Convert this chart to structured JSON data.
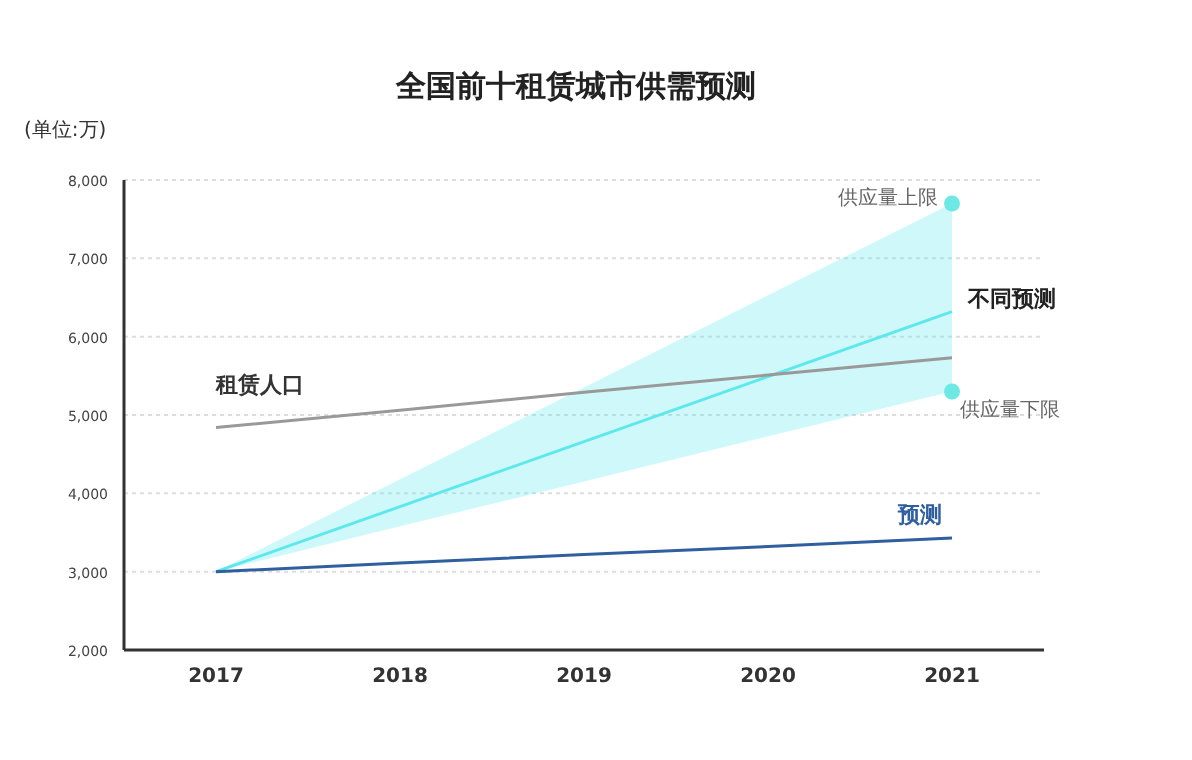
{
  "chart_data": {
    "type": "line",
    "title": "全国前十租赁城市供需预测",
    "ylabel": "(单位:万)",
    "categories": [
      "2017",
      "2018",
      "2019",
      "2020",
      "2021"
    ],
    "series": [
      {
        "name": "不同预测",
        "color": "#5ee8ec",
        "values": [
          3000,
          3830,
          4660,
          5490,
          6320
        ],
        "lower": [
          3000,
          3580,
          4150,
          4730,
          5300
        ],
        "upper": [
          3000,
          4180,
          5350,
          6530,
          7700
        ]
      },
      {
        "name": "租赁人口",
        "color": "#999999",
        "values": [
          4840,
          5060,
          5290,
          5510,
          5730
        ]
      },
      {
        "name": "预测",
        "color": "#2f5f9e",
        "values": [
          3000,
          3110,
          3220,
          3320,
          3430
        ]
      },
      {
        "type": "scatter",
        "color": "#6ee8e4",
        "marker": "circle",
        "values": [
          null,
          null,
          null,
          null,
          7700
        ]
      },
      {
        "type": "scatter",
        "color": "#6ee8e4",
        "marker": "circle",
        "values": [
          null,
          null,
          null,
          null,
          5300
        ]
      }
    ],
    "annotations": [
      {
        "text": "供应量上限",
        "x": "2021",
        "y": 7700
      },
      {
        "text": "供应量下限",
        "x": "2021",
        "y": 5300
      }
    ],
    "ylim": [
      2000,
      8000
    ],
    "yticks": [
      {
        "value": 2000,
        "label": "2,000"
      },
      {
        "value": 3000,
        "label": "3,000"
      },
      {
        "value": 4000,
        "label": "4,000"
      },
      {
        "value": 5000,
        "label": "5,000"
      },
      {
        "value": 6000,
        "label": "6,000"
      },
      {
        "value": 7000,
        "label": "7,000"
      },
      {
        "value": 8000,
        "label": "8,000"
      }
    ],
    "grid": "y",
    "line_style": "solid",
    "marker": "none"
  }
}
